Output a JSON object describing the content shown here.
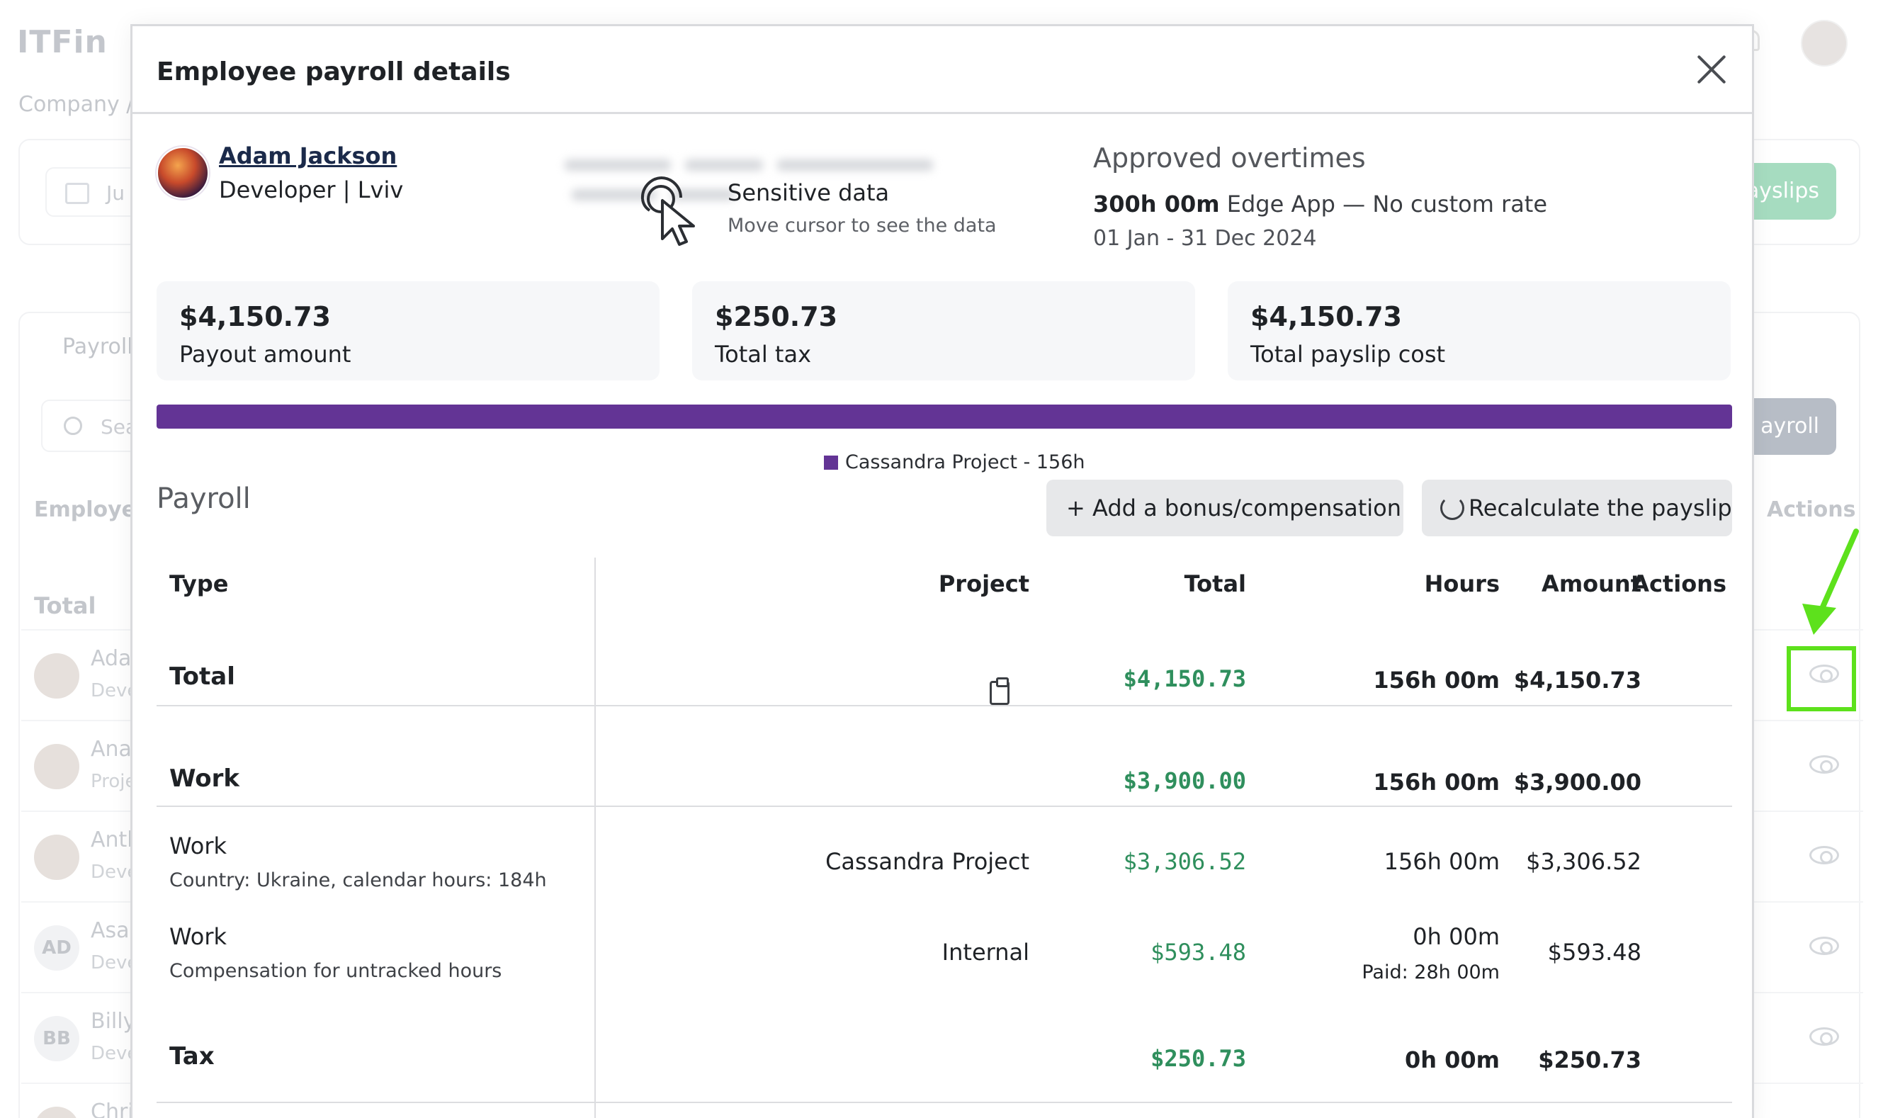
{
  "app": {
    "logo": "ITFin",
    "breadcrumb": "Company /",
    "date_filter": "Ju",
    "payslips_button": "ayslips",
    "payroll_tab": "Payroll",
    "search_placeholder": "Sea",
    "payroll_button": "ayroll",
    "columns": {
      "employee": "Employee",
      "actions": "Actions"
    },
    "total_label": "Total",
    "rows": [
      {
        "initials": "",
        "name": "Ada",
        "role": "Deve"
      },
      {
        "initials": "",
        "name": "Ana",
        "role": "Proje"
      },
      {
        "initials": "",
        "name": "Anth",
        "role": "Deve"
      },
      {
        "initials": "AD",
        "name": "Asar",
        "role": "Deve"
      },
      {
        "initials": "BB",
        "name": "Billy",
        "role": "Deve"
      },
      {
        "initials": "",
        "name": "Chri",
        "role": ""
      }
    ]
  },
  "modal": {
    "title": "Employee payroll details",
    "employee": {
      "name": "Adam Jackson",
      "role": "Developer | Lviv"
    },
    "sensitive": {
      "title": "Sensitive data",
      "subtitle": "Move cursor to see the data"
    },
    "overtimes": {
      "title": "Approved overtimes",
      "hours": "300h 00m",
      "project": " Edge App — No custom rate",
      "dates": "01 Jan - 31 Dec 2024"
    },
    "cards": [
      {
        "value": "$4,150.73",
        "label": "Payout amount"
      },
      {
        "value": "$250.73",
        "label": "Total tax"
      },
      {
        "value": "$4,150.73",
        "label": "Total payslip cost"
      }
    ],
    "distribution": {
      "color": "#633495",
      "legend": "Cassandra Project - 156h"
    },
    "payroll": {
      "title": "Payroll",
      "add_button": "+ Add a bonus/compensation",
      "recalc_button": "Recalculate the payslip",
      "headers": {
        "type": "Type",
        "project": "Project",
        "total": "Total",
        "hours": "Hours",
        "amount": "Amount",
        "actions": "Actions"
      },
      "total_row": {
        "type": "Total",
        "total": "$4,150.73",
        "hours": "156h 00m",
        "amount": "$4,150.73"
      },
      "work_row": {
        "type": "Work",
        "total": "$3,900.00",
        "hours": "156h 00m",
        "amount": "$3,900.00"
      },
      "work_items": [
        {
          "type": "Work",
          "note": "Country: Ukraine, calendar hours: 184h",
          "project": "Cassandra Project",
          "total": "$3,306.52",
          "hours": "156h 00m",
          "paid": "",
          "amount": "$3,306.52"
        },
        {
          "type": "Work",
          "note": "Compensation for untracked hours",
          "project": "Internal",
          "total": "$593.48",
          "hours": "0h 00m",
          "paid": "Paid: 28h 00m",
          "amount": "$593.48"
        }
      ],
      "tax_row": {
        "type": "Tax",
        "total": "$250.73",
        "hours": "0h 00m",
        "amount": "$250.73"
      }
    }
  },
  "colors": {
    "accent_purple": "#633495",
    "money_green": "#2f8f5d",
    "highlight_green": "#5de11c"
  }
}
